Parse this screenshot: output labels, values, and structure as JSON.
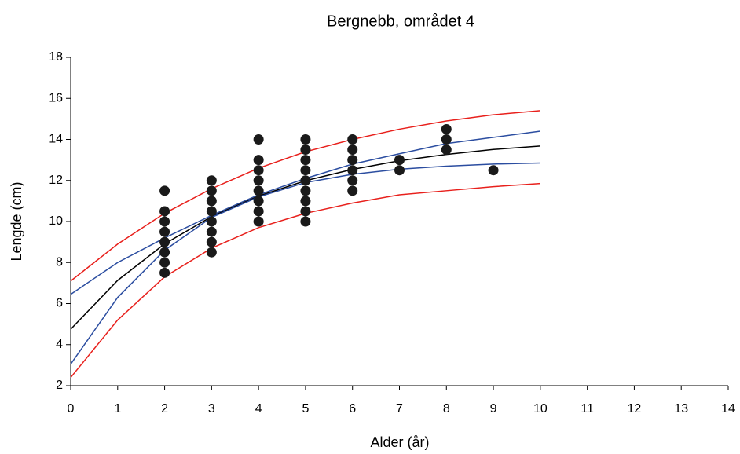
{
  "chart_data": {
    "type": "scatter",
    "title": "Bergnebb, området 4",
    "x_label": "Alder (år)",
    "y_label": "Lengde (cm)",
    "xlim": [
      0,
      14
    ],
    "xticks": [
      0,
      1,
      2,
      3,
      4,
      5,
      6,
      7,
      8,
      9,
      10,
      11,
      12,
      13,
      14
    ],
    "ylim": [
      2,
      18
    ],
    "yticks": [
      2,
      4,
      6,
      8,
      10,
      12,
      14,
      16,
      18
    ],
    "grid": false,
    "series": [
      {
        "type": "scatter",
        "color": "#1a1a1a",
        "x": [
          2,
          2,
          2,
          2,
          2,
          2,
          2,
          2,
          3,
          3,
          3,
          3,
          3,
          3,
          3,
          3,
          4,
          4,
          4,
          4,
          4,
          4,
          4,
          4,
          5,
          5,
          5,
          5,
          5,
          5,
          5,
          5,
          5,
          6,
          6,
          6,
          6,
          6,
          6,
          7,
          7,
          8,
          8,
          8,
          9
        ],
        "values": [
          11.5,
          10.5,
          10,
          9.5,
          9,
          8.5,
          8,
          7.5,
          12,
          11.5,
          11,
          10.5,
          10,
          9.5,
          9,
          8.5,
          14,
          13,
          12.5,
          12,
          11.5,
          11,
          10.5,
          10,
          14,
          13.5,
          13,
          12.5,
          12,
          11.5,
          11,
          10.5,
          10,
          14,
          13.5,
          13,
          12.5,
          12,
          11.5,
          13,
          12.5,
          14.5,
          14,
          13.5,
          12.5
        ]
      },
      {
        "type": "line",
        "color": "#e8201c",
        "x": [
          0,
          1,
          2,
          3,
          4,
          5,
          6,
          7,
          8,
          9,
          10
        ],
        "values": [
          7.1,
          8.9,
          10.4,
          11.6,
          12.6,
          13.4,
          14.0,
          14.5,
          14.9,
          15.2,
          15.4
        ]
      },
      {
        "type": "line",
        "color": "#2b4da0",
        "x": [
          0,
          1,
          2,
          3,
          4,
          5,
          6,
          7,
          8,
          9,
          10
        ],
        "values": [
          6.45,
          8.0,
          9.2,
          10.3,
          11.3,
          12.1,
          12.8,
          13.3,
          13.8,
          14.1,
          14.4
        ]
      },
      {
        "type": "line",
        "color": "#000000",
        "x": [
          0,
          1,
          2,
          3,
          4,
          5,
          6,
          7,
          8,
          9,
          10
        ],
        "values": [
          4.75,
          7.13,
          8.91,
          10.24,
          11.24,
          11.99,
          12.54,
          12.96,
          13.27,
          13.51,
          13.68
        ]
      },
      {
        "type": "line",
        "color": "#2b4da0",
        "x": [
          0,
          1,
          2,
          3,
          4,
          5,
          6,
          7,
          8,
          9,
          10
        ],
        "values": [
          3.05,
          6.3,
          8.6,
          10.2,
          11.2,
          11.9,
          12.3,
          12.55,
          12.7,
          12.8,
          12.85
        ]
      },
      {
        "type": "line",
        "color": "#e8201c",
        "x": [
          0,
          1,
          2,
          3,
          4,
          5,
          6,
          7,
          8,
          9,
          10
        ],
        "values": [
          2.4,
          5.2,
          7.3,
          8.7,
          9.7,
          10.4,
          10.9,
          11.3,
          11.5,
          11.7,
          11.85
        ]
      }
    ]
  }
}
